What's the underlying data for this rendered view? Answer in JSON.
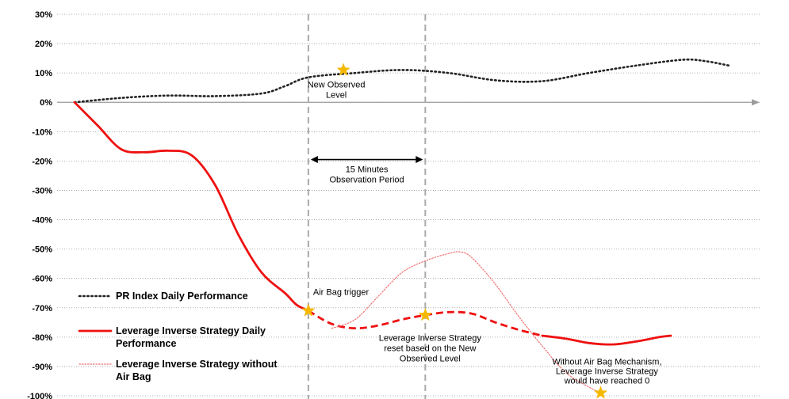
{
  "chart_data": {
    "type": "line",
    "title": "",
    "xlabel": "",
    "ylabel": "",
    "ylim": [
      -100,
      30
    ],
    "yticks": [
      {
        "value": 30,
        "label": "30%"
      },
      {
        "value": 20,
        "label": "20%"
      },
      {
        "value": 10,
        "label": "10%"
      },
      {
        "value": 0,
        "label": "0%"
      },
      {
        "value": -10,
        "label": "-10%"
      },
      {
        "value": -20,
        "label": "-20%"
      },
      {
        "value": -30,
        "label": "-30%"
      },
      {
        "value": -40,
        "label": "-40%"
      },
      {
        "value": -50,
        "label": "-50%"
      },
      {
        "value": -60,
        "label": "-60%"
      },
      {
        "value": -70,
        "label": "-70%"
      },
      {
        "value": -80,
        "label": "-80%"
      },
      {
        "value": -90,
        "label": "-90%"
      },
      {
        "value": -100,
        "label": "-100%"
      }
    ],
    "grid": true,
    "legend_position": "bottom-left",
    "colors": {
      "index": "#222222",
      "strategy": "#ee1111",
      "no_airbag": "#f07070",
      "star": "#f5b800",
      "marker": "#aaaaaa"
    },
    "series": [
      {
        "name": "PR Index Daily Performance",
        "style": "dotted",
        "points": [
          [
            0,
            0
          ],
          [
            2,
            1.5
          ],
          [
            4,
            2.3
          ],
          [
            6,
            2.1
          ],
          [
            8,
            3
          ],
          [
            9,
            5.5
          ],
          [
            10,
            8.5
          ],
          [
            12,
            10
          ],
          [
            14,
            11
          ],
          [
            16,
            10
          ],
          [
            18,
            7.5
          ],
          [
            20,
            7.2
          ],
          [
            22,
            10
          ],
          [
            24,
            12.5
          ],
          [
            26,
            14.5
          ],
          [
            27,
            14
          ],
          [
            28,
            12.5
          ]
        ]
      },
      {
        "name": "Leverage Inverse Strategy Daily Performance",
        "style": "solid",
        "points": [
          [
            0,
            0
          ],
          [
            1,
            -8
          ],
          [
            2,
            -16
          ],
          [
            3,
            -17
          ],
          [
            4,
            -16.5
          ],
          [
            5,
            -18
          ],
          [
            6,
            -28
          ],
          [
            7,
            -45
          ],
          [
            8,
            -58
          ],
          [
            9,
            -65
          ],
          [
            9.5,
            -69
          ],
          [
            10,
            -71
          ]
        ]
      },
      {
        "name": "Leverage Inverse Strategy Daily Performance (reset)",
        "style": "dashed",
        "points": [
          [
            10,
            -71
          ],
          [
            11,
            -75.5
          ],
          [
            12,
            -77
          ],
          [
            13,
            -76
          ],
          [
            14,
            -74
          ],
          [
            15,
            -72.5
          ],
          [
            16,
            -71.5
          ],
          [
            17,
            -72
          ],
          [
            18,
            -75
          ],
          [
            19,
            -77.5
          ],
          [
            20,
            -79.5
          ]
        ]
      },
      {
        "name": "Leverage Inverse Strategy Daily Performance (continued)",
        "style": "solid",
        "points": [
          [
            20,
            -79.5
          ],
          [
            21,
            -80.5
          ],
          [
            22,
            -82
          ],
          [
            23,
            -82.5
          ],
          [
            24,
            -81.5
          ],
          [
            25,
            -80
          ],
          [
            25.5,
            -79.5
          ]
        ]
      },
      {
        "name": "Leverage Inverse Strategy without Air Bag",
        "style": "thin-dotted",
        "points": [
          [
            11,
            -77
          ],
          [
            12,
            -74
          ],
          [
            13,
            -66
          ],
          [
            14,
            -58
          ],
          [
            15,
            -54
          ],
          [
            16,
            -51.5
          ],
          [
            16.5,
            -51
          ],
          [
            17,
            -53
          ],
          [
            18,
            -62
          ],
          [
            19,
            -73
          ],
          [
            20,
            -83
          ],
          [
            21,
            -92
          ],
          [
            22,
            -97
          ],
          [
            22.5,
            -99
          ]
        ]
      }
    ],
    "events": {
      "airbag_trigger_x": 10,
      "reset_x": 15
    },
    "stars": [
      {
        "x": 11.5,
        "y": 11
      },
      {
        "x": 10,
        "y": -71
      },
      {
        "x": 15,
        "y": -72.5
      },
      {
        "x": 22.5,
        "y": -99
      }
    ],
    "annotations": {
      "new_observed_level": [
        "New Observed",
        "Level"
      ],
      "observation_period": [
        "15 Minutes",
        "Observation Period"
      ],
      "airbag_trigger": [
        "Air Bag trigger"
      ],
      "reset": [
        "Leverage Inverse Strategy",
        "reset based on the New",
        "Observed Level"
      ],
      "without_airbag": [
        "Without Air Bag Mechanism,",
        "Leverage Inverse Strategy",
        "would have reached 0"
      ]
    },
    "legend": [
      {
        "style": "dotted",
        "lines": [
          "PR Index Daily Performance"
        ]
      },
      {
        "style": "solid",
        "lines": [
          "Leverage Inverse Strategy Daily",
          "Performance"
        ]
      },
      {
        "style": "thin-dotted",
        "lines": [
          "Leverage Inverse Strategy without",
          "Air Bag"
        ]
      }
    ]
  }
}
